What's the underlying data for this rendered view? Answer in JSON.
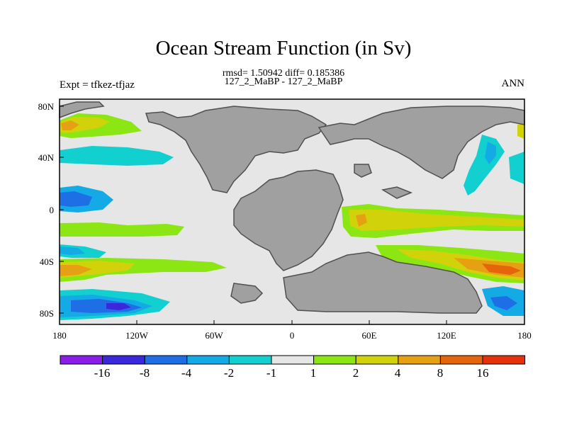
{
  "title": "Ocean Stream Function (in Sv)",
  "stats": "rmsd= 1.50942 diff= 0.185386",
  "subtitle": "127_2_MaBP - 127_2_MaBP",
  "left_label": "Expt = tfkez-tfjaz",
  "right_label": "ANN",
  "x_ticks": [
    "180",
    "120W",
    "60W",
    "0",
    "60E",
    "120E",
    "180"
  ],
  "y_ticks": [
    "80N",
    "40N",
    "0",
    "40S",
    "80S"
  ],
  "colorbar": {
    "labels": [
      "-16",
      "-8",
      "-4",
      "-2",
      "-1",
      "1",
      "2",
      "4",
      "8",
      "16"
    ],
    "colors": [
      "#8a1ee6",
      "#3c28dc",
      "#1e6ee6",
      "#14aae6",
      "#12d0d0",
      "#e6e6e6",
      "#8ce614",
      "#d2d20a",
      "#e6a014",
      "#e6640a",
      "#e6320a"
    ]
  },
  "colors": {
    "land": "#a0a0a0",
    "ocean_neutral": "#e6e6e6"
  }
}
